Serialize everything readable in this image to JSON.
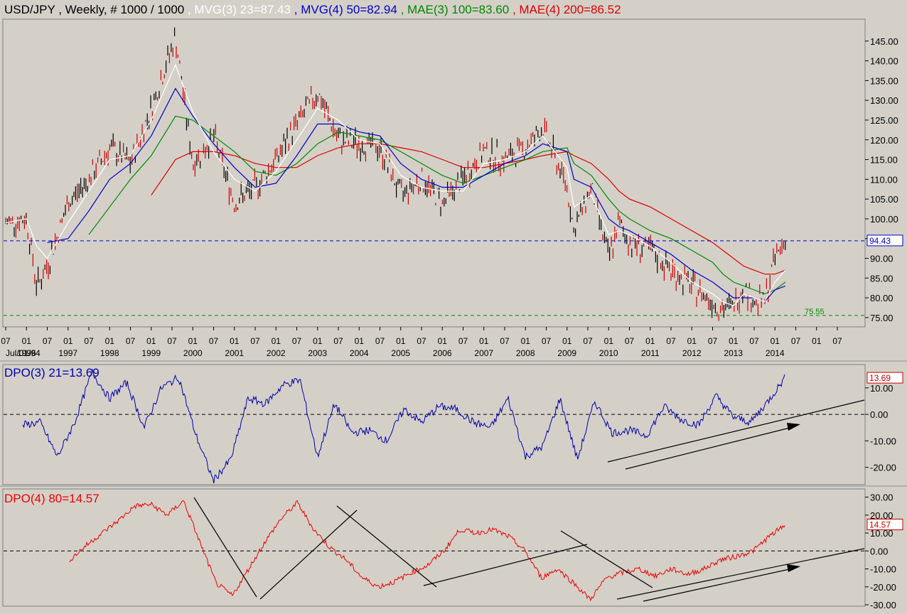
{
  "header": {
    "prefix": "USD/JPY , Weekly, # 1000 / 1000",
    "items": [
      {
        "text": ", MVG(3) 23=87.43",
        "color": "#ffffff"
      },
      {
        "text": ", MVG(4) 50=82.94",
        "color": "#0000cc"
      },
      {
        "text": ", MAE(3) 100=83.60",
        "color": "#008800"
      },
      {
        "text": ", MAE(4) 200=86.52",
        "color": "#dd0000"
      }
    ]
  },
  "colors": {
    "panel_bg": "#d4d0c8",
    "price": "#000000",
    "up_bar": "#000000",
    "down_bar": "#cc0000",
    "mvg3": "#ffffff",
    "mvg4": "#0000cc",
    "mae3": "#008800",
    "mae4": "#dd0000",
    "dpo3": "#0000aa",
    "dpo4": "#ee0000"
  },
  "chart_data": [
    {
      "type": "line",
      "title": "USD/JPY , Weekly, # 1000 / 1000",
      "ylim": [
        73,
        150
      ],
      "y_ticks": [
        "75.00",
        "80.00",
        "85.00",
        "90.00",
        "95.00",
        "100.00",
        "105.00",
        "110.00",
        "115.00",
        "120.00",
        "125.00",
        "130.00",
        "135.00",
        "140.00",
        "145.00"
      ],
      "x_month_labels": [
        "07",
        "01",
        "07",
        "01",
        "07",
        "01",
        "07",
        "01",
        "07",
        "01",
        "07",
        "01",
        "07",
        "01",
        "07",
        "01",
        "07",
        "01",
        "07",
        "01",
        "07",
        "01",
        "07",
        "01",
        "07",
        "01",
        "07",
        "01",
        "07",
        "01",
        "07",
        "01",
        "07",
        "01",
        "07",
        "01",
        "07",
        "01",
        "07",
        "01",
        "07"
      ],
      "x_year_labels": [
        "Jul/01/94",
        "1996",
        "1997",
        "1998",
        "1999",
        "2000",
        "2001",
        "2002",
        "2003",
        "2004",
        "2005",
        "2006",
        "2007",
        "2008",
        "2009",
        "2010",
        "2011",
        "2012",
        "2013",
        "2014"
      ],
      "x": [
        "1994-07",
        "1995-01",
        "1995-04",
        "1995-07",
        "1996-01",
        "1996-07",
        "1997-01",
        "1997-07",
        "1998-01",
        "1998-08",
        "1999-01",
        "1999-07",
        "2000-01",
        "2000-07",
        "2001-01",
        "2001-07",
        "2002-01",
        "2002-07",
        "2003-01",
        "2003-07",
        "2004-01",
        "2004-07",
        "2005-01",
        "2005-07",
        "2006-01",
        "2006-07",
        "2007-01",
        "2007-06",
        "2008-01",
        "2008-03",
        "2008-08",
        "2009-01",
        "2009-04",
        "2009-07",
        "2010-01",
        "2010-07",
        "2011-01",
        "2011-07",
        "2011-10",
        "2012-01",
        "2012-04",
        "2012-07",
        "2012-10",
        "2013-01",
        "2013-04"
      ],
      "series": [
        {
          "name": "USD/JPY",
          "values": [
            99,
            100,
            83,
            88,
            104,
            110,
            118,
            114,
            128,
            146,
            114,
            121,
            104,
            108,
            115,
            124,
            132,
            120,
            119,
            118,
            106,
            110,
            104,
            110,
            117,
            115,
            118,
            123,
            108,
            97,
            108,
            90,
            99,
            94,
            92,
            87,
            83,
            79,
            77,
            78,
            83,
            79,
            79,
            90,
            95
          ]
        },
        {
          "name": "MVG(4) 50",
          "values": [
            null,
            null,
            null,
            null,
            null,
            null,
            null,
            null,
            null,
            null,
            null,
            null,
            null,
            null,
            null,
            null,
            null,
            null,
            null,
            null,
            null,
            null,
            null,
            null,
            null,
            null,
            null,
            null,
            null,
            null,
            null,
            null,
            null,
            null,
            null,
            null,
            null,
            null,
            null,
            null,
            null,
            null,
            null,
            null,
            null
          ]
        },
        {
          "name": "MAE(3) 100",
          "values": [
            null,
            null,
            null,
            null,
            null,
            null,
            null,
            null,
            null,
            null,
            null,
            null,
            null,
            null,
            null,
            null,
            null,
            null,
            null,
            null,
            null,
            null,
            null,
            null,
            null,
            null,
            null,
            null,
            null,
            null,
            null,
            null,
            null,
            null,
            null,
            null,
            null,
            null,
            null,
            null,
            null,
            null,
            null,
            null,
            null
          ]
        },
        {
          "name": "MAE(4) 200",
          "values": [
            null,
            null,
            null,
            null,
            null,
            null,
            null,
            null,
            null,
            null,
            null,
            null,
            null,
            null,
            null,
            null,
            null,
            null,
            null,
            null,
            null,
            null,
            null,
            null,
            null,
            null,
            null,
            null,
            null,
            null,
            null,
            null,
            null,
            null,
            null,
            null,
            null,
            null,
            null,
            null,
            null,
            null,
            null,
            null,
            null
          ]
        }
      ],
      "moving_averages": {
        "mvg3": [
          99,
          100,
          93,
          90,
          99,
          107,
          115,
          116,
          125,
          139,
          127,
          117,
          110,
          107,
          112,
          120,
          128,
          125,
          120,
          119,
          111,
          108,
          107,
          107,
          114,
          115,
          117,
          121,
          113,
          103,
          106,
          96,
          97,
          96,
          93,
          89,
          84,
          81,
          79,
          78,
          81,
          80,
          79,
          84,
          87
        ],
        "mvg4": [
          null,
          null,
          null,
          94,
          95,
          102,
          110,
          114,
          121,
          133,
          126,
          119,
          113,
          108,
          109,
          116,
          124,
          124,
          122,
          121,
          114,
          110,
          108,
          108,
          111,
          114,
          116,
          119,
          117,
          110,
          108,
          100,
          98,
          97,
          94,
          91,
          87,
          84,
          82,
          80,
          80,
          80,
          79,
          82,
          83
        ],
        "mae3": [
          null,
          null,
          null,
          null,
          null,
          96,
          103,
          110,
          116,
          126,
          125,
          121,
          117,
          112,
          111,
          114,
          119,
          122,
          121,
          120,
          117,
          114,
          111,
          109,
          111,
          113,
          115,
          117,
          118,
          114,
          111,
          105,
          102,
          100,
          97,
          95,
          92,
          89,
          86,
          84,
          83,
          82,
          81,
          82,
          84
        ],
        "mae4": [
          null,
          null,
          null,
          null,
          null,
          null,
          null,
          null,
          106,
          115,
          117,
          117,
          116,
          114,
          113,
          113,
          116,
          118,
          119,
          119,
          118,
          117,
          115,
          113,
          113,
          114,
          115,
          116,
          117,
          116,
          114,
          110,
          107,
          105,
          103,
          100,
          97,
          94,
          92,
          90,
          88,
          87,
          86,
          86,
          87
        ]
      },
      "price_line": {
        "value": 94.43,
        "label": "94.43"
      },
      "support_line": {
        "value": 75.55,
        "label": "75.55"
      }
    },
    {
      "type": "line",
      "title": "DPO(3) 21=13.69",
      "ylim": [
        -26,
        18
      ],
      "y_ticks": [
        "10.00",
        "0.00",
        "-10.00",
        "-20.00"
      ],
      "zero_line": 0,
      "series": [
        {
          "name": "DPO(3) 21",
          "values": [
            -4,
            -3,
            -16,
            -3,
            16,
            6,
            12,
            -5,
            10,
            14,
            -8,
            -25,
            -17,
            6,
            4,
            11,
            13,
            -16,
            4,
            -7,
            -6,
            -10,
            2,
            -3,
            3,
            2,
            -3,
            -5,
            6,
            -16,
            -12,
            6,
            -17,
            5,
            -7,
            -6,
            -8,
            3,
            -2,
            -4,
            7,
            -1,
            -3,
            5,
            14
          ]
        }
      ],
      "last_value": {
        "value": 13.69,
        "label": "13.69"
      }
    },
    {
      "type": "line",
      "title": "DPO(4) 80=14.57",
      "ylim": [
        -30,
        33
      ],
      "y_ticks": [
        "30.00",
        "20.00",
        "10.00",
        "0.00",
        "-10.00",
        "-20.00",
        "-30.00"
      ],
      "zero_line": 0,
      "series": [
        {
          "name": "DPO(4) 80",
          "values": [
            -5,
            3,
            10,
            17,
            25,
            26,
            20,
            28,
            5,
            -18,
            -25,
            -10,
            5,
            18,
            27,
            12,
            2,
            -5,
            -15,
            -20,
            -17,
            -12,
            -8,
            0,
            12,
            10,
            12,
            8,
            0,
            -15,
            -10,
            -18,
            -27,
            -15,
            -12,
            -10,
            -14,
            -10,
            -13,
            -10,
            -5,
            -3,
            0,
            8,
            14.57
          ]
        }
      ],
      "last_value": {
        "value": 14.57,
        "label": "14.57"
      }
    }
  ]
}
